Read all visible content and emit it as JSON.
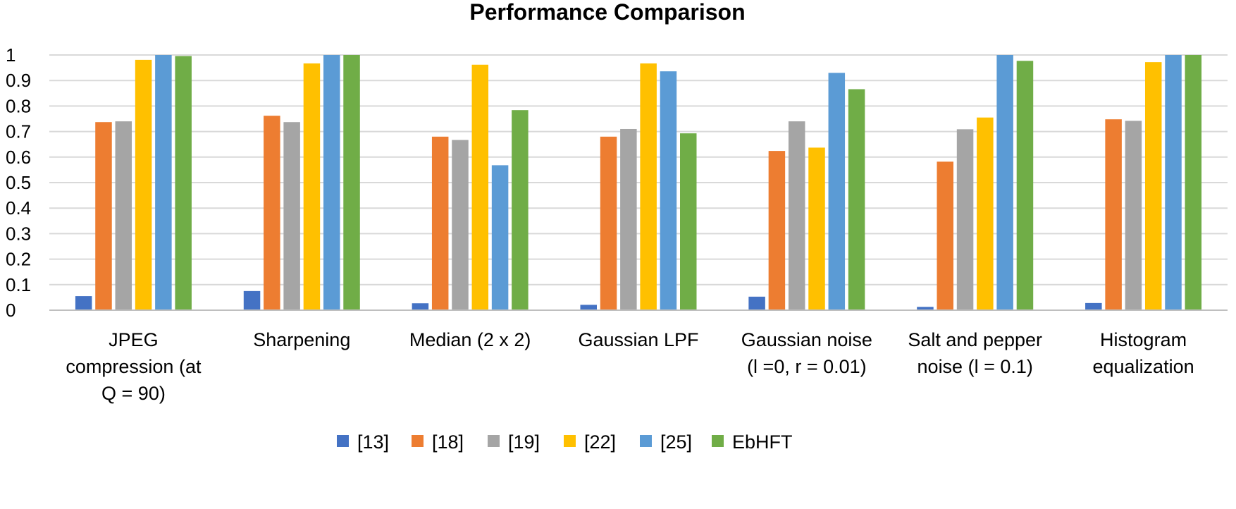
{
  "chart_data": {
    "type": "bar",
    "title": "Performance Comparison",
    "xlabel": "",
    "ylabel": "",
    "ylim": [
      0,
      1
    ],
    "yticks": [
      "0",
      "0.1",
      "0.2",
      "0.3",
      "0.4",
      "0.5",
      "0.6",
      "0.7",
      "0.8",
      "0.9",
      "1"
    ],
    "grid": true,
    "legend_position": "bottom",
    "categories": [
      [
        "JPEG",
        "compression (at",
        "Q = 90)"
      ],
      [
        "Sharpening"
      ],
      [
        "Median (2 x 2)"
      ],
      [
        "Gaussian LPF"
      ],
      [
        "Gaussian noise",
        "(l =0, r = 0.01)"
      ],
      [
        "Salt and pepper",
        "noise (l = 0.1)"
      ],
      [
        "Histogram",
        "equalization"
      ]
    ],
    "series": [
      {
        "name": "[13]",
        "color": "#4472c4",
        "values": [
          0.055,
          0.075,
          0.027,
          0.021,
          0.053,
          0.013,
          0.028
        ]
      },
      {
        "name": "[18]",
        "color": "#ed7d31",
        "values": [
          0.737,
          0.762,
          0.68,
          0.68,
          0.624,
          0.582,
          0.748
        ]
      },
      {
        "name": "[19]",
        "color": "#a5a5a5",
        "values": [
          0.74,
          0.737,
          0.667,
          0.71,
          0.74,
          0.709,
          0.742
        ]
      },
      {
        "name": "[22]",
        "color": "#ffc000",
        "values": [
          0.981,
          0.967,
          0.962,
          0.967,
          0.637,
          0.755,
          0.972
        ]
      },
      {
        "name": "[25]",
        "color": "#5b9bd5",
        "values": [
          1.0,
          1.0,
          0.568,
          0.936,
          0.93,
          1.0,
          1.0
        ]
      },
      {
        "name": "EbHFT",
        "color": "#70ad47",
        "values": [
          0.996,
          1.0,
          0.784,
          0.693,
          0.866,
          0.977,
          1.0
        ]
      }
    ]
  }
}
